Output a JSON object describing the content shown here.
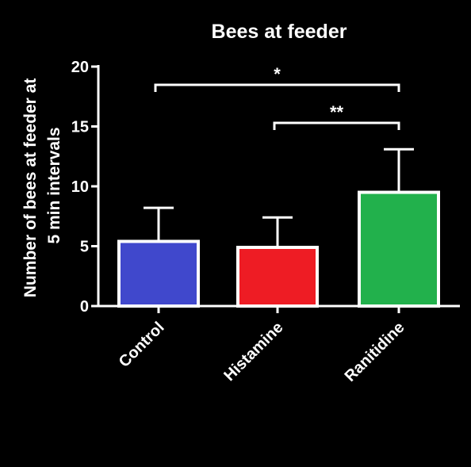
{
  "chart_data": {
    "type": "bar",
    "title": "Bees at feeder",
    "ylabel_lines": [
      "Number of bees at feeder at",
      "5 min intervals"
    ],
    "xlabel": "",
    "categories": [
      "Control",
      "Histamine",
      "Ranitidine"
    ],
    "values": [
      5.4,
      4.9,
      9.5
    ],
    "errors": [
      2.8,
      2.5,
      3.6
    ],
    "bar_colors": [
      "#4048cc",
      "#ee1c24",
      "#22b14c"
    ],
    "ylim": [
      0,
      20
    ],
    "yticks": [
      "0",
      "5",
      "10",
      "15",
      "20"
    ],
    "grid": false,
    "significance": [
      {
        "from": "Control",
        "to": "Ranitidine",
        "label": "*"
      },
      {
        "from": "Histamine",
        "to": "Ranitidine",
        "label": "**"
      }
    ],
    "background": "#000000",
    "foreground": "#ffffff"
  }
}
